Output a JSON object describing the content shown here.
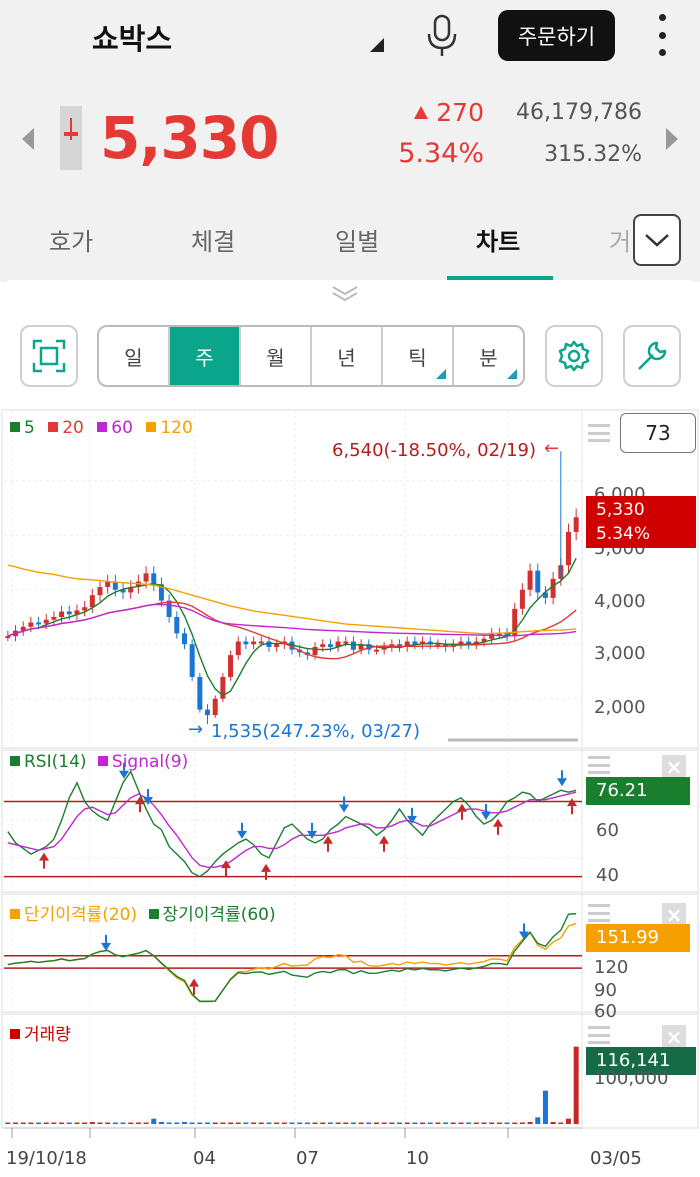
{
  "header": {
    "stock_name": "쇼박스",
    "order_button": "주문하기",
    "price": "5,330",
    "change": "270",
    "change_pct": "5.34%",
    "volume": "46,179,786",
    "turnover_ratio": "315.32%",
    "colors": {
      "up": "#e53935",
      "accent": "#0aa58a"
    }
  },
  "tabs": [
    {
      "label": "호가"
    },
    {
      "label": "체결"
    },
    {
      "label": "일별"
    },
    {
      "label": "차트"
    },
    {
      "label": "거"
    }
  ],
  "active_tab": "차트",
  "toolbar": {
    "periods": [
      "일",
      "주",
      "월",
      "년",
      "틱",
      "분"
    ],
    "active_period": "주",
    "count_value": "73"
  },
  "price_chart": {
    "legend": [
      {
        "label": "5",
        "color": "#1b7d2e"
      },
      {
        "label": "20",
        "color": "#e53935"
      },
      {
        "label": "60",
        "color": "#c026d3"
      },
      {
        "label": "120",
        "color": "#f5a000"
      }
    ],
    "high_note": "6,540(-18.50%, 02/19)",
    "low_note": "1,535(247.23%, 03/27)",
    "y_ticks": [
      "6,000",
      "5,000",
      "4,000",
      "3,000",
      "2,000"
    ],
    "current_price": "5,330",
    "current_pct": "5.34%"
  },
  "rsi_panel": {
    "legend": [
      {
        "label": "RSI(14)",
        "color": "#1b7d2e"
      },
      {
        "label": "Signal(9)",
        "color": "#c026d3"
      }
    ],
    "y_ticks": [
      "60",
      "40"
    ],
    "value": "76.21"
  },
  "disparity_panel": {
    "legend": [
      {
        "label": "단기이격률(20)",
        "color": "#f5a000"
      },
      {
        "label": "장기이격률(60)",
        "color": "#1b7d2e"
      }
    ],
    "y_ticks": [
      "120",
      "90",
      "60"
    ],
    "value": "151.99"
  },
  "volume_panel": {
    "legend": [
      {
        "label": "거래량",
        "color": "#d00000"
      }
    ],
    "y_ticks": [
      "100,000"
    ],
    "value": "116,141"
  },
  "x_axis": [
    "19/10/18",
    "04",
    "07",
    "10",
    "03/05"
  ],
  "chart_data": {
    "type": "candlestick",
    "x_labels": [
      "19/10/18",
      "04",
      "07",
      "10",
      "03/05"
    ],
    "weekly_close": [
      3150,
      3250,
      3320,
      3400,
      3380,
      3450,
      3500,
      3600,
      3550,
      3620,
      3680,
      3900,
      4050,
      4150,
      4000,
      3950,
      4050,
      4150,
      4300,
      4100,
      3800,
      3500,
      3200,
      3000,
      2400,
      1800,
      1700,
      2000,
      2400,
      2800,
      3050,
      3000,
      3050,
      3050,
      2950,
      3000,
      3050,
      2900,
      2850,
      2800,
      2950,
      3000,
      2950,
      3050,
      3050,
      2900,
      3000,
      2900,
      2900,
      2950,
      3000,
      2950,
      3050,
      3000,
      3050,
      3000,
      3000,
      2950,
      3000,
      3050,
      3000,
      3050,
      3100,
      3200,
      3200,
      3150,
      3650,
      4000,
      4350,
      3950,
      3850,
      4200,
      4450,
      5060,
      5330
    ],
    "ma120": [
      4450,
      4420,
      4380,
      4350,
      4320,
      4300,
      4280,
      4250,
      4220,
      4200,
      4190,
      4180,
      4170,
      4150,
      4140,
      4130,
      4120,
      4110,
      4100,
      4080,
      4050,
      4020,
      3980,
      3940,
      3900,
      3860,
      3820,
      3780,
      3740,
      3700,
      3670,
      3640,
      3610,
      3590,
      3570,
      3550,
      3530,
      3510,
      3490,
      3470,
      3450,
      3430,
      3410,
      3390,
      3370,
      3360,
      3350,
      3340,
      3330,
      3320,
      3310,
      3300,
      3290,
      3280,
      3270,
      3260,
      3250,
      3240,
      3230,
      3220,
      3210,
      3200,
      3190,
      3200,
      3200,
      3210,
      3220,
      3230,
      3240,
      3250,
      3250,
      3260,
      3260,
      3270,
      3280
    ],
    "rsi": [
      54,
      48,
      45,
      42,
      44,
      46,
      50,
      60,
      72,
      80,
      70,
      65,
      62,
      60,
      70,
      80,
      86,
      76,
      66,
      58,
      55,
      46,
      42,
      38,
      32,
      30,
      33,
      38,
      42,
      45,
      48,
      50,
      47,
      42,
      40,
      48,
      56,
      58,
      54,
      50,
      48,
      50,
      55,
      58,
      62,
      60,
      58,
      56,
      52,
      55,
      60,
      66,
      60,
      56,
      52,
      58,
      62,
      66,
      70,
      72,
      68,
      62,
      58,
      60,
      64,
      70,
      72,
      75,
      74,
      70,
      72,
      74,
      76,
      75,
      76
    ],
    "rsi_signal": [
      48,
      47,
      46,
      45,
      44,
      45,
      46,
      50,
      56,
      62,
      66,
      67,
      65,
      63,
      64,
      68,
      72,
      74,
      72,
      68,
      63,
      57,
      52,
      46,
      40,
      36,
      35,
      35,
      36,
      38,
      41,
      44,
      46,
      46,
      45,
      45,
      47,
      50,
      52,
      52,
      52,
      52,
      53,
      54,
      56,
      57,
      58,
      58,
      56,
      56,
      57,
      59,
      60,
      59,
      57,
      57,
      59,
      61,
      63,
      65,
      66,
      66,
      65,
      64,
      64,
      65,
      67,
      69,
      71,
      71,
      71,
      72,
      73,
      74,
      75
    ],
    "volume_k": [
      1,
      1,
      1,
      1,
      2,
      1,
      1,
      1,
      2,
      1,
      1,
      3,
      1,
      1,
      1,
      1,
      2,
      1,
      1,
      8,
      3,
      2,
      1,
      3,
      2,
      1,
      1,
      2,
      1,
      1,
      1,
      1,
      2,
      1,
      1,
      1,
      1,
      1,
      1,
      1,
      1,
      1,
      1,
      1,
      1,
      1,
      1,
      1,
      1,
      1,
      1,
      1,
      1,
      1,
      1,
      1,
      1,
      1,
      1,
      1,
      1,
      1,
      1,
      1,
      1,
      2,
      2,
      2,
      3,
      10,
      50,
      3,
      2,
      8,
      116
    ]
  }
}
